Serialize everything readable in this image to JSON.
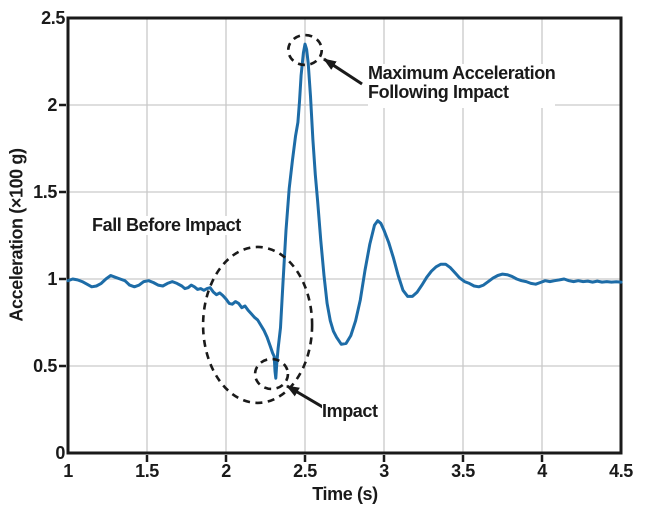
{
  "chart_data": {
    "type": "line",
    "title": "",
    "xlabel": "Time (s)",
    "ylabel": "Acceleration (×100 g)",
    "xlim": [
      1,
      4.5
    ],
    "ylim": [
      0,
      2.5
    ],
    "x_tick_values": [
      1,
      1.5,
      2,
      2.5,
      3,
      3.5,
      4,
      4.5
    ],
    "x_tick_labels": [
      "1",
      "1.5",
      "2",
      "2.5",
      "3",
      "3.5",
      "4",
      "4.5"
    ],
    "y_tick_values": [
      0,
      0.5,
      1,
      1.5,
      2,
      2.5
    ],
    "y_tick_labels": [
      "0",
      "0.5",
      "1",
      "1.5",
      "2",
      "2.5"
    ],
    "grid": true,
    "legend": "none",
    "colors": {
      "line": "#1d6ca7",
      "grid": "#c9c9c9",
      "axis": "#1a1a1a",
      "text": "#1a1a1a",
      "background": "#ffffff"
    },
    "labels": {
      "fall_before_impact": "Fall Before Impact",
      "maximum_acceleration": "Maximum Acceleration\nFollowing Impact",
      "impact": "Impact"
    },
    "annotations": [
      {
        "id": "fall-ellipse",
        "type": "ellipse",
        "center": [
          2.2,
          0.736
        ],
        "rx": 0.345,
        "ry": 0.448
      },
      {
        "id": "impact-circle",
        "type": "ellipse",
        "center": [
          2.288,
          0.454
        ],
        "rx": 0.104,
        "ry": 0.086
      },
      {
        "id": "peak-circle",
        "type": "ellipse",
        "center": [
          2.5,
          2.316
        ],
        "rx": 0.106,
        "ry": 0.086
      },
      {
        "id": "peak-arrow",
        "type": "arrow",
        "from": [
          2.861,
          2.121
        ],
        "to": [
          2.62,
          2.264
        ]
      },
      {
        "id": "impact-arrow",
        "type": "arrow",
        "from": [
          2.665,
          0.236
        ],
        "to": [
          2.386,
          0.385
        ]
      }
    ],
    "series": [
      {
        "name": "Acceleration",
        "points": [
          [
            1.0,
            0.99
          ],
          [
            1.03,
            1.0
          ],
          [
            1.06,
            0.995
          ],
          [
            1.09,
            0.985
          ],
          [
            1.12,
            0.97
          ],
          [
            1.15,
            0.955
          ],
          [
            1.18,
            0.96
          ],
          [
            1.21,
            0.975
          ],
          [
            1.24,
            1.0
          ],
          [
            1.27,
            1.02
          ],
          [
            1.3,
            1.01
          ],
          [
            1.33,
            1.0
          ],
          [
            1.36,
            0.99
          ],
          [
            1.39,
            0.965
          ],
          [
            1.42,
            0.955
          ],
          [
            1.45,
            0.965
          ],
          [
            1.48,
            0.985
          ],
          [
            1.51,
            0.99
          ],
          [
            1.54,
            0.98
          ],
          [
            1.57,
            0.965
          ],
          [
            1.6,
            0.96
          ],
          [
            1.63,
            0.975
          ],
          [
            1.66,
            0.985
          ],
          [
            1.69,
            0.975
          ],
          [
            1.72,
            0.96
          ],
          [
            1.74,
            0.945
          ],
          [
            1.76,
            0.95
          ],
          [
            1.78,
            0.965
          ],
          [
            1.8,
            0.955
          ],
          [
            1.82,
            0.94
          ],
          [
            1.84,
            0.945
          ],
          [
            1.86,
            0.935
          ],
          [
            1.88,
            0.945
          ],
          [
            1.9,
            0.95
          ],
          [
            1.92,
            0.925
          ],
          [
            1.94,
            0.91
          ],
          [
            1.96,
            0.92
          ],
          [
            1.98,
            0.905
          ],
          [
            2.0,
            0.885
          ],
          [
            2.02,
            0.86
          ],
          [
            2.04,
            0.855
          ],
          [
            2.06,
            0.87
          ],
          [
            2.08,
            0.86
          ],
          [
            2.1,
            0.835
          ],
          [
            2.12,
            0.845
          ],
          [
            2.14,
            0.82
          ],
          [
            2.16,
            0.8
          ],
          [
            2.18,
            0.78
          ],
          [
            2.2,
            0.765
          ],
          [
            2.22,
            0.735
          ],
          [
            2.24,
            0.705
          ],
          [
            2.26,
            0.665
          ],
          [
            2.28,
            0.615
          ],
          [
            2.295,
            0.575
          ],
          [
            2.305,
            0.555
          ],
          [
            2.31,
            0.47
          ],
          [
            2.315,
            0.43
          ],
          [
            2.32,
            0.5
          ],
          [
            2.325,
            0.555
          ],
          [
            2.33,
            0.6
          ],
          [
            2.345,
            0.72
          ],
          [
            2.36,
            0.97
          ],
          [
            2.38,
            1.28
          ],
          [
            2.4,
            1.52
          ],
          [
            2.42,
            1.68
          ],
          [
            2.44,
            1.82
          ],
          [
            2.455,
            1.9
          ],
          [
            2.465,
            2.02
          ],
          [
            2.475,
            2.17
          ],
          [
            2.49,
            2.3
          ],
          [
            2.5,
            2.35
          ],
          [
            2.51,
            2.32
          ],
          [
            2.52,
            2.24
          ],
          [
            2.535,
            2.05
          ],
          [
            2.55,
            1.8
          ],
          [
            2.565,
            1.6
          ],
          [
            2.58,
            1.45
          ],
          [
            2.6,
            1.22
          ],
          [
            2.62,
            1.02
          ],
          [
            2.64,
            0.86
          ],
          [
            2.66,
            0.76
          ],
          [
            2.68,
            0.7
          ],
          [
            2.7,
            0.665
          ],
          [
            2.73,
            0.625
          ],
          [
            2.76,
            0.63
          ],
          [
            2.79,
            0.675
          ],
          [
            2.82,
            0.76
          ],
          [
            2.85,
            0.88
          ],
          [
            2.88,
            1.05
          ],
          [
            2.91,
            1.2
          ],
          [
            2.94,
            1.31
          ],
          [
            2.96,
            1.335
          ],
          [
            2.98,
            1.32
          ],
          [
            3.0,
            1.28
          ],
          [
            3.03,
            1.21
          ],
          [
            3.06,
            1.12
          ],
          [
            3.09,
            1.02
          ],
          [
            3.12,
            0.935
          ],
          [
            3.15,
            0.9
          ],
          [
            3.18,
            0.9
          ],
          [
            3.21,
            0.925
          ],
          [
            3.24,
            0.965
          ],
          [
            3.27,
            1.01
          ],
          [
            3.3,
            1.045
          ],
          [
            3.33,
            1.07
          ],
          [
            3.36,
            1.085
          ],
          [
            3.39,
            1.085
          ],
          [
            3.42,
            1.065
          ],
          [
            3.45,
            1.035
          ],
          [
            3.48,
            1.005
          ],
          [
            3.51,
            0.985
          ],
          [
            3.54,
            0.975
          ],
          [
            3.57,
            0.96
          ],
          [
            3.6,
            0.955
          ],
          [
            3.63,
            0.965
          ],
          [
            3.66,
            0.985
          ],
          [
            3.69,
            1.005
          ],
          [
            3.72,
            1.02
          ],
          [
            3.75,
            1.028
          ],
          [
            3.78,
            1.025
          ],
          [
            3.81,
            1.015
          ],
          [
            3.84,
            1.0
          ],
          [
            3.87,
            0.99
          ],
          [
            3.9,
            0.985
          ],
          [
            3.93,
            0.975
          ],
          [
            3.96,
            0.97
          ],
          [
            3.99,
            0.98
          ],
          [
            4.02,
            0.99
          ],
          [
            4.05,
            0.985
          ],
          [
            4.08,
            0.99
          ],
          [
            4.11,
            0.995
          ],
          [
            4.14,
            1.0
          ],
          [
            4.17,
            0.99
          ],
          [
            4.2,
            0.985
          ],
          [
            4.23,
            0.99
          ],
          [
            4.26,
            0.985
          ],
          [
            4.29,
            0.988
          ],
          [
            4.32,
            0.982
          ],
          [
            4.35,
            0.988
          ],
          [
            4.38,
            0.982
          ],
          [
            4.41,
            0.985
          ],
          [
            4.44,
            0.982
          ],
          [
            4.47,
            0.984
          ],
          [
            4.5,
            0.982
          ]
        ]
      }
    ]
  }
}
